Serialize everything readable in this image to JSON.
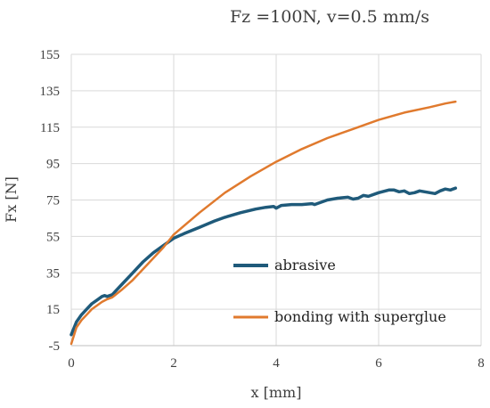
{
  "chart_data": {
    "type": "line",
    "title": "Fz =100N, v=0.5 mm/s",
    "xlabel": "x [mm]",
    "ylabel": "Fx [N]",
    "xlim": [
      0,
      8
    ],
    "ylim": [
      -5,
      155
    ],
    "xticks": [
      "0",
      "2",
      "4",
      "6",
      "8"
    ],
    "yticks": [
      "-5",
      "15",
      "35",
      "55",
      "75",
      "95",
      "115",
      "135",
      "155"
    ],
    "grid": true,
    "legend_position": "inside-bottom-right",
    "series": [
      {
        "name": "abrasive",
        "color": "#1f5a7a",
        "x": [
          0,
          0.1,
          0.2,
          0.3,
          0.4,
          0.5,
          0.6,
          0.65,
          0.7,
          0.75,
          0.8,
          0.9,
          1.0,
          1.2,
          1.4,
          1.6,
          1.8,
          2.0,
          2.2,
          2.5,
          2.8,
          3.0,
          3.3,
          3.6,
          3.8,
          3.95,
          4.0,
          4.1,
          4.3,
          4.5,
          4.7,
          4.75,
          5.0,
          5.2,
          5.4,
          5.5,
          5.6,
          5.7,
          5.8,
          6.0,
          6.2,
          6.3,
          6.4,
          6.5,
          6.6,
          6.7,
          6.8,
          7.0,
          7.1,
          7.2,
          7.3,
          7.4,
          7.5
        ],
        "y": [
          1,
          8,
          12,
          15,
          18,
          20,
          22,
          22.5,
          22,
          22.5,
          23,
          26,
          29,
          35,
          41,
          46,
          50,
          54,
          56.5,
          60,
          63.5,
          65.5,
          68,
          70,
          71,
          71.5,
          70.5,
          72,
          72.5,
          72.5,
          73,
          72.5,
          75,
          76,
          76.5,
          75.5,
          76,
          77.5,
          77,
          79,
          80.5,
          80.5,
          79.5,
          80,
          78.5,
          79,
          80,
          79,
          78.5,
          80,
          81,
          80.5,
          81.5
        ]
      },
      {
        "name": "bonding with superglue",
        "color": "#e07a2e",
        "x": [
          0,
          0.1,
          0.2,
          0.3,
          0.4,
          0.5,
          0.6,
          0.7,
          0.8,
          1.0,
          1.2,
          1.5,
          1.8,
          2.0,
          2.5,
          3.0,
          3.5,
          4.0,
          4.5,
          5.0,
          5.5,
          6.0,
          6.5,
          7.0,
          7.3,
          7.5
        ],
        "y": [
          -4,
          5,
          9,
          12,
          15,
          17,
          19,
          20.5,
          21.5,
          26,
          31,
          40,
          49,
          56,
          68,
          79,
          88,
          96,
          103,
          109,
          114,
          119,
          123,
          126,
          128,
          129
        ]
      }
    ]
  }
}
